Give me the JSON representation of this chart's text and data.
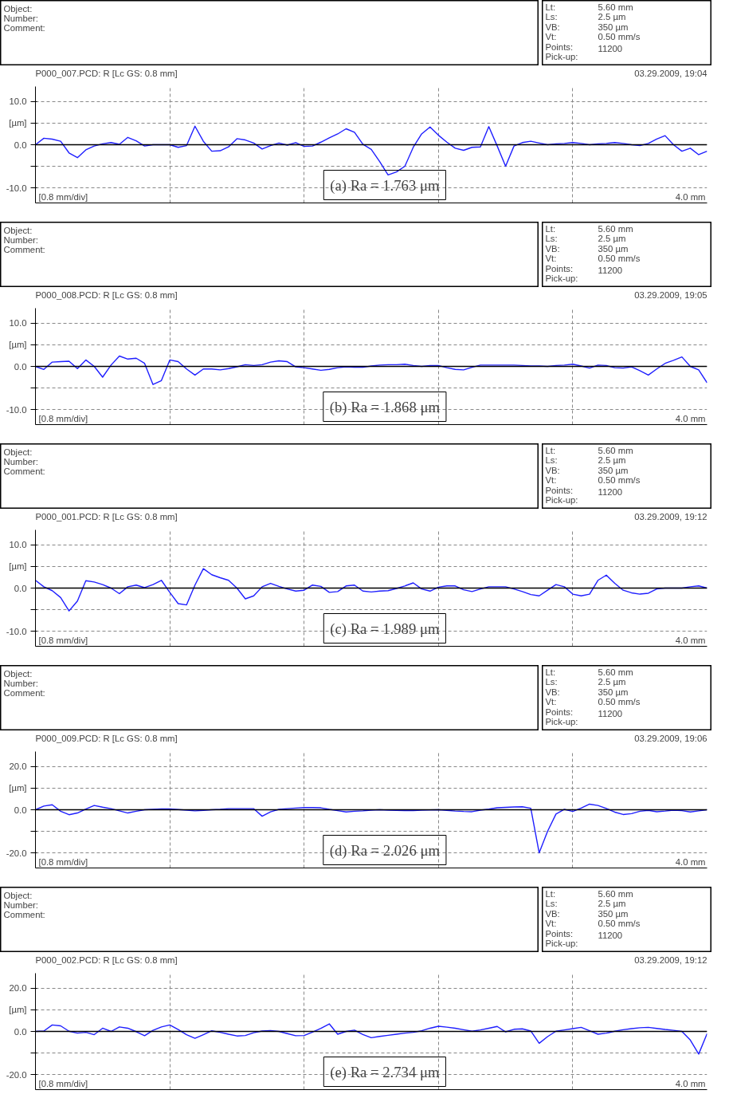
{
  "chart_data": [
    {
      "type": "line",
      "title": "P000_007.PCD: R [Lc GS: 0.8 mm]",
      "annotations": [
        "Object:",
        "Number:",
        "Comment:",
        "Lt:",
        "5.60 mm",
        "Ls:",
        "2.5 µm",
        "VB:",
        "350 µm",
        "Vt:",
        "0.50 mm/s",
        "Points:",
        "11200",
        "Pick-up:",
        "03.29.2009, 19:04",
        "[0.8 mm/div]",
        "4.0 mm",
        "(a) Ra = 1.763 μm"
      ],
      "categories": [
        null,
        null,
        null,
        null,
        null,
        null,
        null,
        null,
        null,
        null,
        null,
        null,
        null,
        null,
        null,
        null,
        null,
        null,
        null,
        null,
        null,
        null,
        null,
        null,
        null,
        null,
        null,
        null,
        null,
        null,
        null,
        null,
        null,
        null,
        null,
        null,
        null,
        null,
        null,
        null,
        null,
        null,
        null,
        null,
        null,
        null,
        null,
        null,
        null,
        null,
        null,
        null,
        null,
        null,
        null,
        null,
        null,
        null,
        null,
        null,
        null,
        null,
        null,
        null,
        null,
        null,
        null,
        null,
        null,
        null,
        null,
        null,
        null,
        null,
        null,
        null,
        null,
        null,
        null,
        null,
        null
      ],
      "ylim": [
        -13.5,
        13.5
      ],
      "yticks": [
        {
          "value": 10,
          "label": "10.0"
        },
        {
          "value": 5,
          "label": "[µm]"
        },
        {
          "value": 0,
          "label": "0.0"
        },
        {
          "value": -5,
          "label": null
        },
        {
          "value": -10,
          "label": "-10.0"
        }
      ],
      "tick_labels": "y",
      "grid": true,
      "ref_lines": [
        {
          "axis": "y",
          "value": 0,
          "color": "#000000"
        }
      ],
      "series": [
        {
          "color": "#1f1fff",
          "values": [
            0,
            1.5,
            1.3,
            0.8,
            -1.9,
            -3,
            -1.2,
            -0.3,
            0.2,
            0.5,
            0.1,
            1.7,
            0.9,
            -0.3,
            0,
            0,
            0,
            -0.6,
            -0.2,
            4.3,
            0.8,
            -1.5,
            -1.4,
            -0.5,
            1.4,
            1.1,
            0.4,
            -1,
            -0.2,
            0.4,
            -0.1,
            0.5,
            -0.4,
            -0.3,
            0.6,
            1.6,
            2.5,
            3.7,
            2.9,
            0.1,
            -1.1,
            -3.9,
            -7,
            -6.3,
            -5,
            -0.6,
            2.5,
            4.1,
            2.2,
            0.6,
            -0.8,
            -1.3,
            -0.6,
            -0.5,
            4.2,
            -0.3,
            -5,
            -0.3,
            0.5,
            0.8,
            0.4,
            0,
            0.2,
            0.3,
            0.5,
            0.3,
            0,
            0.2,
            0.3,
            0.5,
            0.3,
            0,
            -0.2,
            0.3,
            1.3,
            2.1,
            0,
            -1.5,
            -0.8,
            -2.3,
            -1.5
          ]
        }
      ]
    },
    {
      "type": "line",
      "title": "P000_008.PCD: R [Lc GS: 0.8 mm]",
      "annotations": [
        "Object:",
        "Number:",
        "Comment:",
        "Lt:",
        "5.60 mm",
        "Ls:",
        "2.5 µm",
        "VB:",
        "350 µm",
        "Vt:",
        "0.50 mm/s",
        "Points:",
        "11200",
        "Pick-up:",
        "03.29.2009, 19:05",
        "[0.8 mm/div]",
        "4.0 mm",
        "(b) Ra = 1.868 μm"
      ],
      "categories": [
        null,
        null,
        null,
        null,
        null,
        null,
        null,
        null,
        null,
        null,
        null,
        null,
        null,
        null,
        null,
        null,
        null,
        null,
        null,
        null,
        null,
        null,
        null,
        null,
        null,
        null,
        null,
        null,
        null,
        null,
        null,
        null,
        null,
        null,
        null,
        null,
        null,
        null,
        null,
        null,
        null,
        null,
        null,
        null,
        null,
        null,
        null,
        null,
        null,
        null,
        null,
        null,
        null,
        null,
        null,
        null,
        null,
        null,
        null,
        null,
        null,
        null,
        null,
        null,
        null,
        null,
        null,
        null,
        null,
        null,
        null,
        null,
        null,
        null,
        null,
        null,
        null,
        null,
        null,
        null,
        null
      ],
      "ylim": [
        -13.5,
        13.5
      ],
      "yticks": [
        {
          "value": 10,
          "label": "10.0"
        },
        {
          "value": 5,
          "label": "[µm]"
        },
        {
          "value": 0,
          "label": "0.0"
        },
        {
          "value": -5,
          "label": null
        },
        {
          "value": -10,
          "label": "-10.0"
        }
      ],
      "tick_labels": "y",
      "grid": true,
      "ref_lines": [
        {
          "axis": "y",
          "value": 0,
          "color": "#000000"
        }
      ],
      "series": [
        {
          "color": "#1f1fff",
          "values": [
            0,
            -0.7,
            1,
            1.1,
            1.2,
            -0.5,
            1.5,
            0,
            -2.5,
            0.3,
            2.4,
            1.7,
            1.9,
            0.7,
            -4.2,
            -3.3,
            1.5,
            1.1,
            -0.6,
            -2,
            -0.6,
            -0.6,
            -0.8,
            -0.5,
            -0.1,
            0.4,
            0.2,
            0.4,
            1,
            1.3,
            1.1,
            -0.1,
            -0.3,
            -0.6,
            -0.9,
            -0.7,
            -0.3,
            -0.1,
            -0.2,
            -0.2,
            0.1,
            0.3,
            0.4,
            0.4,
            0.5,
            0.2,
            0,
            0.2,
            0.2,
            -0.3,
            -0.7,
            -0.8,
            -0.2,
            0.3,
            0.3,
            0.3,
            0.3,
            0.3,
            0.2,
            0.1,
            0.1,
            0,
            0.2,
            0.3,
            0.5,
            0.1,
            -0.4,
            0.3,
            0.2,
            -0.3,
            -0.4,
            -0.1,
            -1,
            -2,
            -0.6,
            0.7,
            1.4,
            2.2,
            0,
            -0.8,
            -3.8
          ]
        }
      ]
    },
    {
      "type": "line",
      "title": "P000_001.PCD: R [Lc GS: 0.8 mm]",
      "annotations": [
        "Object:",
        "Number:",
        "Comment:",
        "Lt:",
        "5.60 mm",
        "Ls:",
        "2.5 µm",
        "VB:",
        "350 µm",
        "Vt:",
        "0.50 mm/s",
        "Points:",
        "11200",
        "Pick-up:",
        "03.29.2009, 19:12",
        "[0.8 mm/div]",
        "4.0 mm",
        "(c) Ra = 1.989 μm"
      ],
      "categories": [
        null,
        null,
        null,
        null,
        null,
        null,
        null,
        null,
        null,
        null,
        null,
        null,
        null,
        null,
        null,
        null,
        null,
        null,
        null,
        null,
        null,
        null,
        null,
        null,
        null,
        null,
        null,
        null,
        null,
        null,
        null,
        null,
        null,
        null,
        null,
        null,
        null,
        null,
        null,
        null,
        null,
        null,
        null,
        null,
        null,
        null,
        null,
        null,
        null,
        null,
        null,
        null,
        null,
        null,
        null,
        null,
        null,
        null,
        null,
        null,
        null,
        null,
        null,
        null,
        null,
        null,
        null,
        null,
        null,
        null,
        null,
        null,
        null,
        null,
        null,
        null,
        null,
        null,
        null,
        null,
        null
      ],
      "ylim": [
        -13.5,
        13.5
      ],
      "yticks": [
        {
          "value": 10,
          "label": "10.0"
        },
        {
          "value": 5,
          "label": "[µm]"
        },
        {
          "value": 0,
          "label": "0.0"
        },
        {
          "value": -5,
          "label": null
        },
        {
          "value": -10,
          "label": "-10.0"
        }
      ],
      "tick_labels": "y",
      "grid": true,
      "ref_lines": [
        {
          "axis": "y",
          "value": 0,
          "color": "#000000"
        }
      ],
      "series": [
        {
          "color": "#1f1fff",
          "values": [
            1.8,
            0.3,
            -0.6,
            -2.2,
            -5.3,
            -3,
            1.7,
            1.4,
            0.8,
            0,
            -1.3,
            0.3,
            0.7,
            0.1,
            0.8,
            1.8,
            -1,
            -3.6,
            -3.9,
            0.7,
            4.5,
            3.1,
            2.4,
            1.8,
            0,
            -2.5,
            -1.8,
            0.3,
            1.1,
            0.4,
            -0.2,
            -0.7,
            -0.5,
            0.7,
            0.4,
            -1,
            -0.8,
            0.5,
            0.7,
            -0.7,
            -0.9,
            -0.7,
            -0.6,
            -0.1,
            0.5,
            1.2,
            -0.2,
            -0.7,
            0.2,
            0.5,
            0.5,
            -0.4,
            -0.8,
            -0.2,
            0.3,
            0.3,
            0.3,
            -0.2,
            -0.8,
            -1.5,
            -1.8,
            -0.5,
            0.8,
            0.3,
            -1.4,
            -1.8,
            -1.4,
            1.8,
            3,
            1.1,
            -0.5,
            -1.1,
            -1.4,
            -1.2,
            -0.2,
            0,
            0,
            0,
            0.3,
            0.5,
            0
          ]
        }
      ]
    },
    {
      "type": "line",
      "title": "P000_009.PCD: R [Lc GS: 0.8 mm]",
      "annotations": [
        "Object:",
        "Number:",
        "Comment:",
        "Lt:",
        "5.60 mm",
        "Ls:",
        "2.5 µm",
        "VB:",
        "350 µm",
        "Vt:",
        "0.50 mm/s",
        "Points:",
        "11200",
        "Pick-up:",
        "03.29.2009, 19:06",
        "[0.8 mm/div]",
        "4.0 mm",
        "(d) Ra = 2.026 μm"
      ],
      "categories": [
        null,
        null,
        null,
        null,
        null,
        null,
        null,
        null,
        null,
        null,
        null,
        null,
        null,
        null,
        null,
        null,
        null,
        null,
        null,
        null,
        null,
        null,
        null,
        null,
        null,
        null,
        null,
        null,
        null,
        null,
        null,
        null,
        null,
        null,
        null,
        null,
        null,
        null,
        null,
        null,
        null,
        null,
        null,
        null,
        null,
        null,
        null,
        null,
        null,
        null,
        null,
        null,
        null,
        null,
        null,
        null,
        null,
        null,
        null,
        null,
        null,
        null,
        null,
        null,
        null,
        null,
        null,
        null,
        null,
        null,
        null,
        null,
        null,
        null,
        null,
        null,
        null,
        null,
        null,
        null,
        null
      ],
      "ylim": [
        -27,
        27
      ],
      "yticks": [
        {
          "value": 20,
          "label": "20.0"
        },
        {
          "value": 10,
          "label": "[µm]"
        },
        {
          "value": 0,
          "label": "0.0"
        },
        {
          "value": -10,
          "label": null
        },
        {
          "value": -20,
          "label": "-20.0"
        }
      ],
      "tick_labels": "y",
      "grid": true,
      "ref_lines": [
        {
          "axis": "y",
          "value": 0,
          "color": "#000000"
        }
      ],
      "series": [
        {
          "color": "#1f1fff",
          "values": [
            0,
            1.7,
            2.3,
            -0.7,
            -2.3,
            -1.5,
            0.3,
            2,
            1.2,
            0.5,
            -0.5,
            -1.5,
            -0.7,
            0,
            0.2,
            0.4,
            0.4,
            0.1,
            -0.2,
            -0.5,
            -0.3,
            0,
            0.2,
            0.5,
            0.5,
            0.5,
            0.5,
            -3,
            -1,
            0.2,
            0.5,
            0.8,
            1,
            1,
            0.9,
            0.2,
            -0.4,
            -1,
            -0.7,
            -0.5,
            -0.2,
            0,
            -0.2,
            -0.3,
            -0.4,
            -0.4,
            -0.2,
            -0.1,
            0,
            -0.3,
            -0.6,
            -0.8,
            -0.9,
            -0.2,
            0.3,
            0.9,
            1.1,
            1.3,
            1.4,
            0.7,
            -20,
            -10,
            -2,
            0.2,
            -0.8,
            0.8,
            2.6,
            2,
            0.6,
            -1.1,
            -2.2,
            -1.8,
            -0.7,
            -0.3,
            -0.9,
            -0.6,
            -0.2,
            -0.4,
            -1,
            -0.5,
            0
          ]
        }
      ]
    },
    {
      "type": "line",
      "title": "P000_002.PCD: R [Lc GS: 0.8 mm]",
      "annotations": [
        "Object:",
        "Number:",
        "Comment:",
        "Lt:",
        "5.60 mm",
        "Ls:",
        "2.5 µm",
        "VB:",
        "350 µm",
        "Vt:",
        "0.50 mm/s",
        "Points:",
        "11200",
        "Pick-up:",
        "03.29.2009, 19:12",
        "[0.8 mm/div]",
        "4.0 mm",
        "(e) Ra = 2.734 μm"
      ],
      "categories": [
        null,
        null,
        null,
        null,
        null,
        null,
        null,
        null,
        null,
        null,
        null,
        null,
        null,
        null,
        null,
        null,
        null,
        null,
        null,
        null,
        null,
        null,
        null,
        null,
        null,
        null,
        null,
        null,
        null,
        null,
        null,
        null,
        null,
        null,
        null,
        null,
        null,
        null,
        null,
        null,
        null,
        null,
        null,
        null,
        null,
        null,
        null,
        null,
        null,
        null,
        null,
        null,
        null,
        null,
        null,
        null,
        null,
        null,
        null,
        null,
        null,
        null,
        null,
        null,
        null,
        null,
        null,
        null,
        null,
        null,
        null,
        null,
        null,
        null,
        null,
        null,
        null,
        null,
        null,
        null,
        null
      ],
      "ylim": [
        -27,
        27
      ],
      "yticks": [
        {
          "value": 20,
          "label": "20.0"
        },
        {
          "value": 10,
          "label": "[µm]"
        },
        {
          "value": 0,
          "label": "0.0"
        },
        {
          "value": -10,
          "label": null
        },
        {
          "value": -20,
          "label": "-20.0"
        }
      ],
      "tick_labels": "y",
      "grid": true,
      "ref_lines": [
        {
          "axis": "y",
          "value": 0,
          "color": "#000000"
        }
      ],
      "series": [
        {
          "color": "#1f1fff",
          "values": [
            0,
            0.2,
            3,
            2.6,
            0.1,
            -0.8,
            -0.4,
            -1.5,
            1.5,
            0,
            2.1,
            1.5,
            -0.1,
            -2,
            0.5,
            2.1,
            3,
            0.9,
            -1.5,
            -3.2,
            -1.5,
            0.3,
            -0.4,
            -1.3,
            -2.1,
            -1.9,
            -0.6,
            0.2,
            0.4,
            0,
            -1,
            -2,
            -1.9,
            -0.3,
            1.4,
            3.5,
            -1.3,
            0,
            0.6,
            -1.4,
            -2.9,
            -2.3,
            -1.8,
            -1.3,
            -0.8,
            -0.4,
            0.3,
            1.5,
            2.4,
            2,
            1.5,
            0.8,
            0.1,
            0.7,
            1.5,
            2.3,
            -0.2,
            1,
            1.2,
            0.2,
            -5.5,
            -2.4,
            0.1,
            0.7,
            1.3,
            1.9,
            0.3,
            -1.3,
            -0.8,
            0.1,
            0.8,
            1.3,
            1.7,
            1.9,
            1.4,
            0.9,
            0.5,
            0,
            -4,
            -10.5,
            -1
          ]
        }
      ]
    }
  ]
}
